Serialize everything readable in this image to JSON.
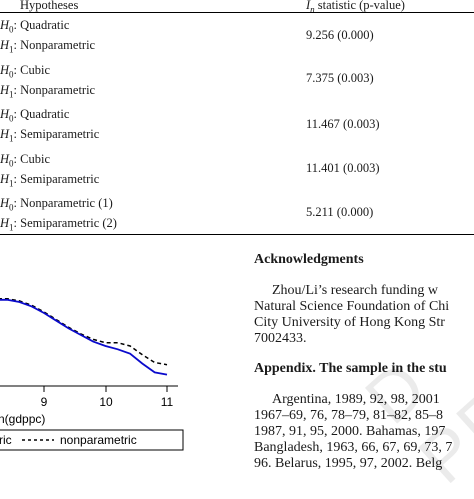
{
  "table": {
    "header_left": "Hypotheses",
    "header_right_prefix": "I",
    "header_right_sub": "n",
    "header_right_suffix": " statistic (p-value)",
    "rows": [
      {
        "h0": "Quadratic",
        "h1": "Nonparametric",
        "stat": "9.256 (0.000)"
      },
      {
        "h0": "Cubic",
        "h1": "Nonparametric",
        "stat": "7.375 (0.003)"
      },
      {
        "h0": "Quadratic",
        "h1": "Semiparametric",
        "stat": "11.467 (0.003)"
      },
      {
        "h0": "Cubic",
        "h1": "Semiparametric",
        "stat": "11.401 (0.003)"
      },
      {
        "h0": "Nonparametric (1)",
        "h1": "Semiparametric (2)",
        "stat": "5.211 (0.000)"
      }
    ]
  },
  "acknowledgments": {
    "heading": "Acknowledgments",
    "lines": [
      "Zhou/Li’s research funding w",
      "Natural Science Foundation of Chi",
      "City University of Hong Kong Str",
      "7002433."
    ]
  },
  "appendix": {
    "heading": "Appendix. The sample in the stu",
    "lines": [
      "Argentina, 1989, 92, 98, 2001",
      "1967–69, 76, 78–79, 81–82, 85–8",
      "1987, 91, 95, 2000. Bahamas, 197",
      "Bangladesh, 1963, 66, 67, 69, 73, 7",
      "96. Belarus, 1995, 97, 2002. Belg"
    ]
  },
  "watermark": "D PRO",
  "chart_data": {
    "type": "line",
    "xlabel": "n(gdppc)",
    "x_ticks": [
      9,
      10,
      11
    ],
    "xlim": [
      7.8,
      11.3
    ],
    "ylim": [
      0,
      1
    ],
    "series": [
      {
        "name": "nonparametric",
        "style": "dashed",
        "color": "#000000",
        "x": [
          7.8,
          8.0,
          8.2,
          8.4,
          8.6,
          8.8,
          9.0,
          9.2,
          9.4,
          9.6,
          9.8,
          10.0,
          10.2,
          10.4,
          10.6,
          10.8,
          11.0
        ],
        "y": [
          0.7,
          0.72,
          0.73,
          0.73,
          0.71,
          0.67,
          0.61,
          0.54,
          0.47,
          0.41,
          0.36,
          0.33,
          0.33,
          0.3,
          0.22,
          0.15,
          0.13
        ]
      },
      {
        "name": "",
        "style": "solid",
        "color": "#0a0acc",
        "x": [
          7.8,
          8.0,
          8.2,
          8.4,
          8.6,
          8.8,
          9.0,
          9.2,
          9.4,
          9.6,
          9.8,
          10.0,
          10.2,
          10.4,
          10.6,
          10.8,
          11.0
        ],
        "y": [
          0.69,
          0.71,
          0.72,
          0.72,
          0.7,
          0.66,
          0.6,
          0.53,
          0.46,
          0.4,
          0.34,
          0.3,
          0.27,
          0.23,
          0.14,
          0.06,
          0.04
        ]
      }
    ],
    "legend": {
      "left_text": "ric",
      "dashed_label": "nonparametric"
    }
  }
}
